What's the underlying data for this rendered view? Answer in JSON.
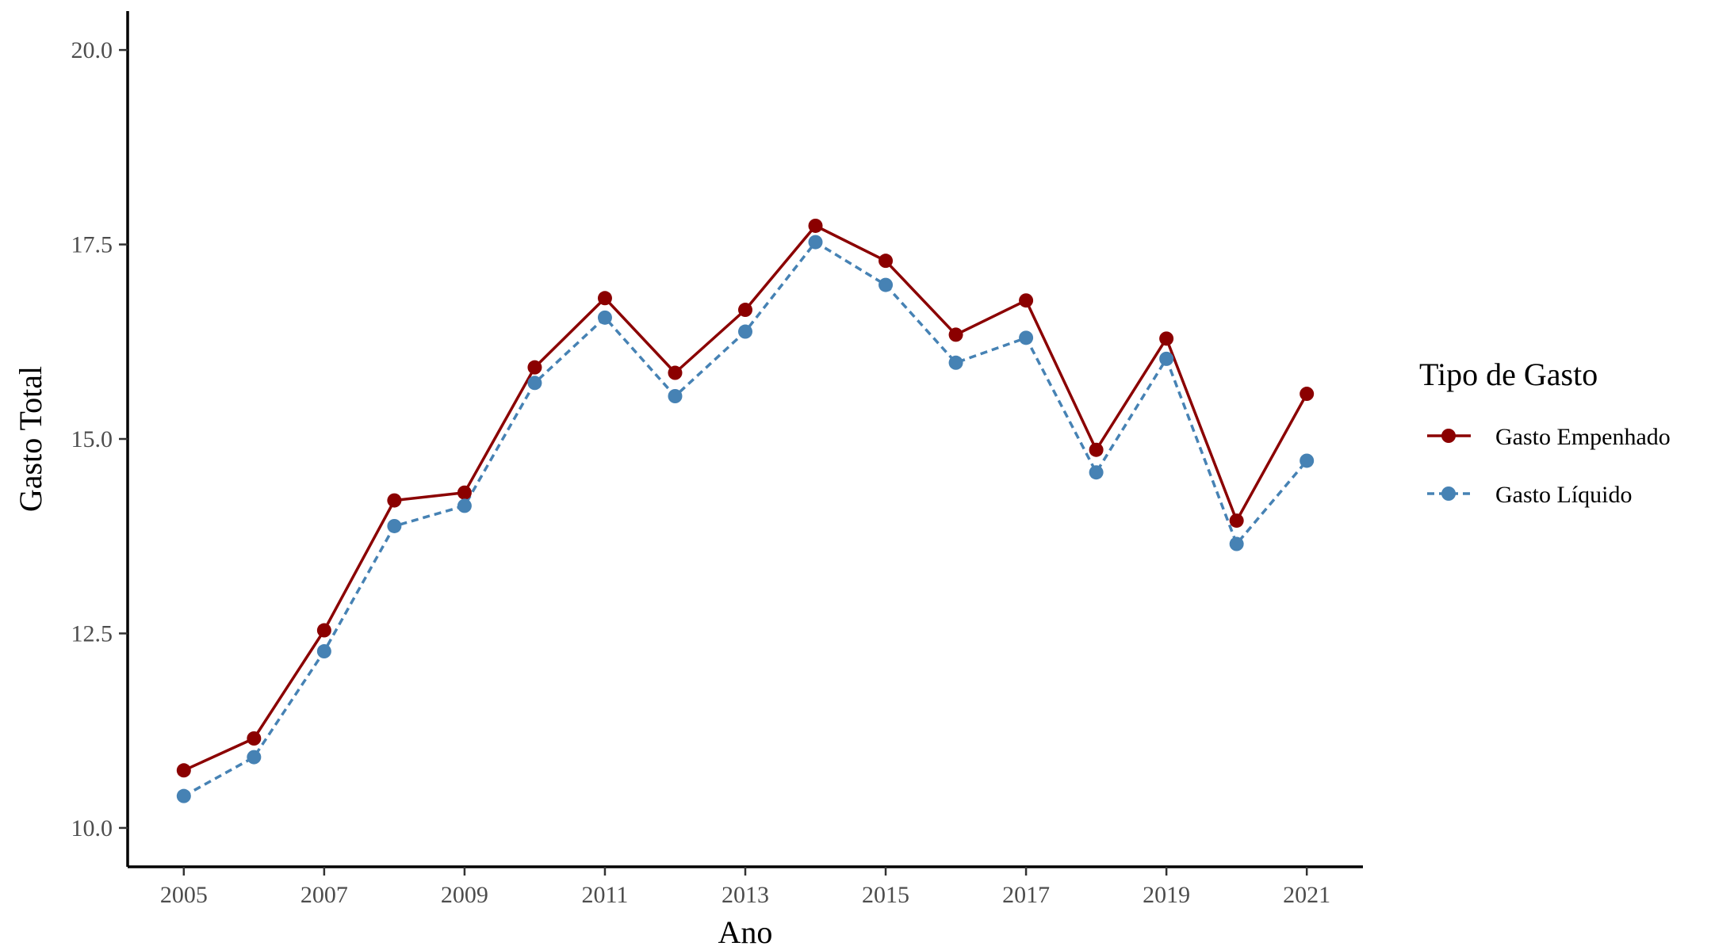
{
  "chart_data": {
    "type": "line",
    "xlabel": "Ano",
    "ylabel": "Gasto Total",
    "xlim": [
      2004.2,
      2021.8
    ],
    "ylim": [
      9.5,
      20.5
    ],
    "x_ticks": [
      2005,
      2007,
      2009,
      2011,
      2013,
      2015,
      2017,
      2019,
      2021
    ],
    "y_ticks": [
      10.0,
      12.5,
      15.0,
      17.5,
      20.0
    ],
    "y_tick_labels": [
      "10.0",
      "12.5",
      "15.0",
      "17.5",
      "20.0"
    ],
    "grid": false,
    "legend": {
      "title": "Tipo de Gasto",
      "position": "right"
    },
    "x": [
      2005,
      2006,
      2007,
      2008,
      2009,
      2010,
      2011,
      2012,
      2013,
      2014,
      2015,
      2016,
      2017,
      2018,
      2019,
      2020,
      2021
    ],
    "series": [
      {
        "name": "Gasto Empenhado",
        "color": "#8b0000",
        "line_style": "solid",
        "values": [
          10.74,
          11.15,
          12.54,
          14.21,
          14.31,
          15.92,
          16.81,
          15.85,
          16.66,
          17.74,
          17.29,
          16.34,
          16.78,
          14.86,
          16.29,
          13.95,
          15.58
        ]
      },
      {
        "name": "Gasto Líquido",
        "color": "#4682b4",
        "line_style": "dashed",
        "values": [
          10.41,
          10.91,
          12.27,
          13.88,
          14.14,
          15.72,
          16.56,
          15.55,
          16.38,
          17.53,
          16.98,
          15.98,
          16.3,
          14.57,
          16.03,
          13.65,
          14.72
        ]
      }
    ]
  }
}
